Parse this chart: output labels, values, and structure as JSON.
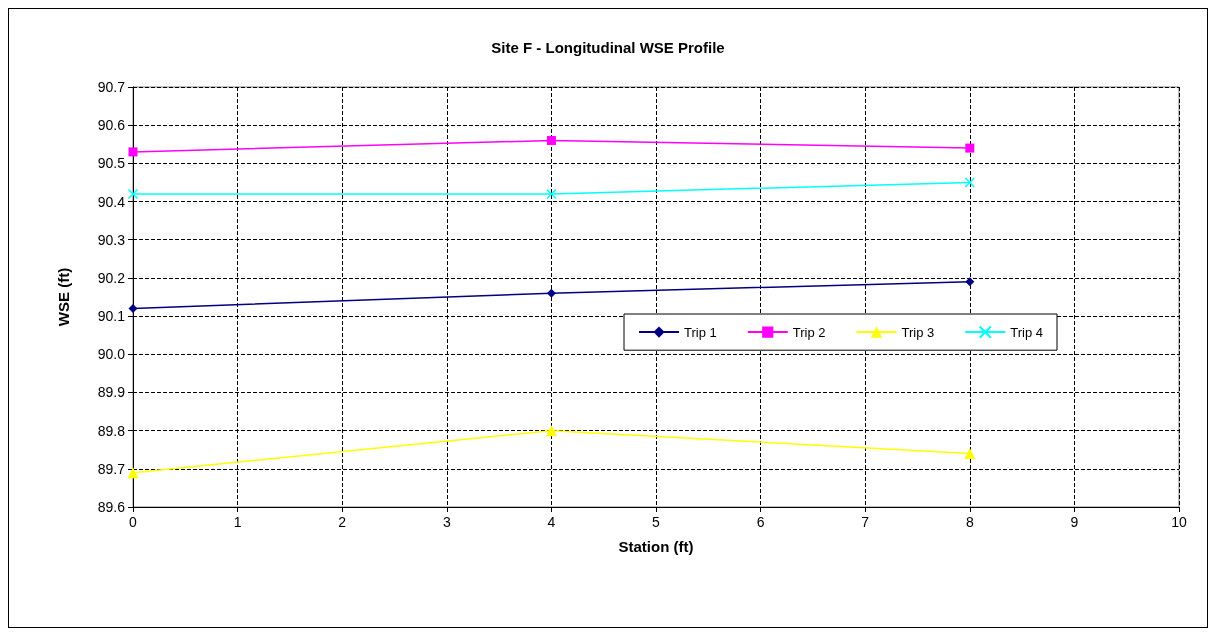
{
  "chart_data": {
    "type": "line",
    "title": "Site F - Longitudinal WSE Profile",
    "xlabel": "Station (ft)",
    "ylabel": "WSE (ft)",
    "x": [
      0,
      4,
      8
    ],
    "series": [
      {
        "name": "Trip 1",
        "color": "#000080",
        "marker": "diamond",
        "values": [
          90.12,
          90.16,
          90.19
        ]
      },
      {
        "name": "Trip 2",
        "color": "#ff00ff",
        "marker": "square",
        "values": [
          90.53,
          90.56,
          90.54
        ]
      },
      {
        "name": "Trip 3",
        "color": "#ffff00",
        "marker": "triangle",
        "values": [
          89.69,
          89.8,
          89.74
        ]
      },
      {
        "name": "Trip 4",
        "color": "#00ffff",
        "marker": "cross",
        "values": [
          90.42,
          90.42,
          90.45
        ]
      }
    ],
    "xlim": [
      0,
      10
    ],
    "xticks": [
      0,
      1,
      2,
      3,
      4,
      5,
      6,
      7,
      8,
      9,
      10
    ],
    "ylim": [
      89.6,
      90.7
    ],
    "yticks": [
      89.6,
      89.7,
      89.8,
      89.9,
      {
        "value": 90,
        "label": "90.0"
      },
      90.1,
      90.2,
      90.3,
      90.4,
      90.5,
      90.6,
      90.7
    ],
    "grid": true,
    "legend": "right",
    "line_style": "solid"
  }
}
